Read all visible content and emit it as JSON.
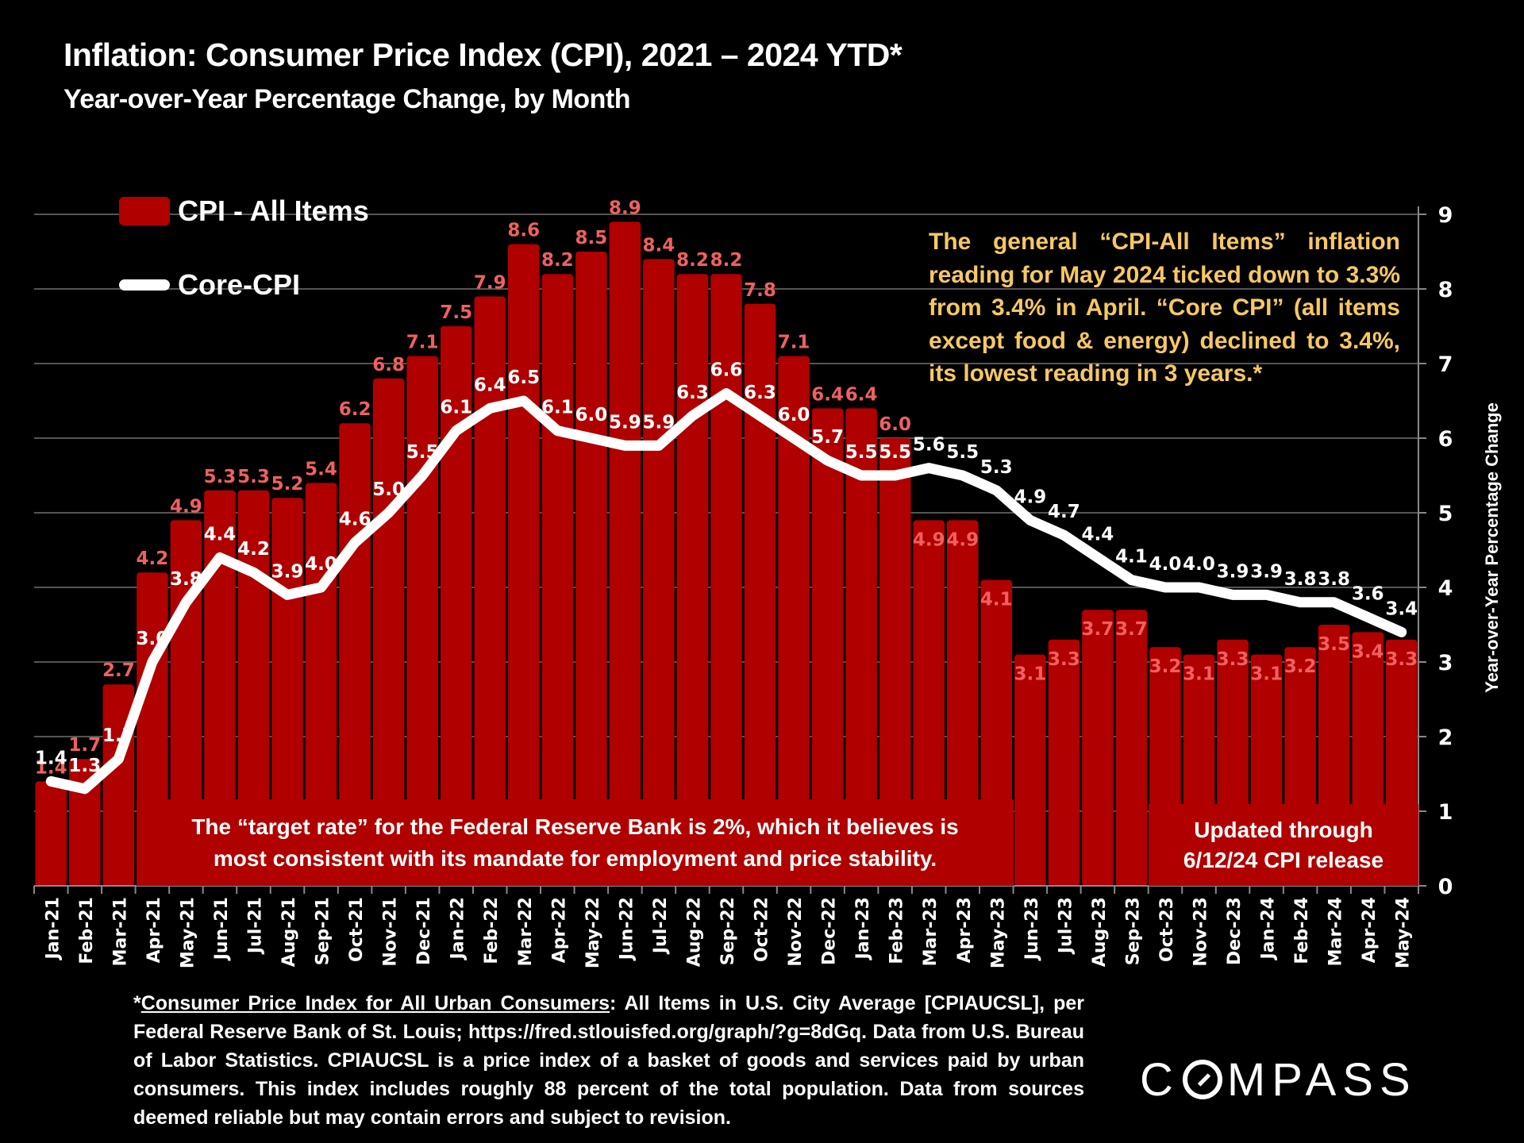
{
  "header": {
    "title": "Inflation: Consumer Price Index (CPI), 2021 – 2024 YTD*",
    "subtitle": "Year-over-Year Percentage Change, by Month"
  },
  "legend": {
    "cpi_label": "CPI - All Items",
    "core_label": "Core-CPI"
  },
  "colors": {
    "background": "#000000",
    "bar": "#b00000",
    "bar_label": "#f06060",
    "core_line": "#ffffff",
    "note_text": "#f6c863",
    "grid": "#555555"
  },
  "annotations": {
    "note": "The general “CPI-All Items” inflation reading for May 2024 ticked down to 3.3% from 3.4% in April. “Core CPI” (all items except food & energy) declined to 3.4%, its lowest reading in 3 years.*",
    "target_line1": "The “target rate” for the Federal Reserve Bank is 2%, which it believes is",
    "target_line2": "most consistent with its mandate for employment and price stability.",
    "updated_line1": "Updated through",
    "updated_line2": "6/12/24 CPI release"
  },
  "footnote": {
    "prefix": "*",
    "underlined": "Consumer Price Index for All Urban Consumers",
    "body": ": All Items in U.S. City Average [CPIAUCSL], per Federal Reserve Bank of St. Louis; https://fred.stlouisfed.org/graph/?g=8dGq. Data from U.S. Bureau of Labor Statistics. CPIAUCSL is a price index of a basket of goods and services paid by urban consumers. This index includes roughly 88 percent of the total population. Data from sources deemed reliable but may contain errors and subject to revision."
  },
  "logo": {
    "before": "C",
    "after": "MPASS"
  },
  "chart_data": {
    "type": "bar",
    "title": "Inflation: Consumer Price Index (CPI), 2021 – 2024 YTD*",
    "subtitle": "Year-over-Year Percentage Change, by Month",
    "xlabel": "",
    "ylabel": "Year-over-Year Percentage Change",
    "ylim": [
      0,
      9
    ],
    "yticks": [
      0,
      1,
      2,
      3,
      4,
      5,
      6,
      7,
      8,
      9
    ],
    "y_axis_side": "right",
    "grid": true,
    "legend_position": "top-left",
    "categories": [
      "Jan-21",
      "Feb-21",
      "Mar-21",
      "Apr-21",
      "May-21",
      "Jun-21",
      "Jul-21",
      "Aug-21",
      "Sep-21",
      "Oct-21",
      "Nov-21",
      "Dec-21",
      "Jan-22",
      "Feb-22",
      "Mar-22",
      "Apr-22",
      "May-22",
      "Jun-22",
      "Jul-22",
      "Aug-22",
      "Sep-22",
      "Oct-22",
      "Nov-22",
      "Dec-22",
      "Jan-23",
      "Feb-23",
      "Mar-23",
      "Apr-23",
      "May-23",
      "Jun-23",
      "Jul-23",
      "Aug-23",
      "Sep-23",
      "Oct-23",
      "Nov-23",
      "Dec-23",
      "Jan-24",
      "Feb-24",
      "Mar-24",
      "Apr-24",
      "May-24"
    ],
    "series": [
      {
        "name": "CPI - All Items",
        "type": "bar",
        "values": [
          1.4,
          1.7,
          2.7,
          4.2,
          4.9,
          5.3,
          5.3,
          5.2,
          5.4,
          6.2,
          6.8,
          7.1,
          7.5,
          7.9,
          8.6,
          8.2,
          8.5,
          8.9,
          8.4,
          8.2,
          8.2,
          7.8,
          7.1,
          6.4,
          6.4,
          6.0,
          4.9,
          4.9,
          4.1,
          3.1,
          3.3,
          3.7,
          3.7,
          3.2,
          3.1,
          3.3,
          3.1,
          3.2,
          3.5,
          3.4,
          3.3
        ]
      },
      {
        "name": "Core-CPI",
        "type": "line",
        "values": [
          1.4,
          1.3,
          1.7,
          3.0,
          3.8,
          4.4,
          4.2,
          3.9,
          4.0,
          4.6,
          5.0,
          5.5,
          6.1,
          6.4,
          6.5,
          6.1,
          6.0,
          5.9,
          5.9,
          6.3,
          6.6,
          6.3,
          6.0,
          5.7,
          5.5,
          5.5,
          5.6,
          5.5,
          5.3,
          4.9,
          4.7,
          4.4,
          4.1,
          4.0,
          4.0,
          3.9,
          3.9,
          3.8,
          3.8,
          3.6,
          3.4
        ]
      }
    ]
  }
}
